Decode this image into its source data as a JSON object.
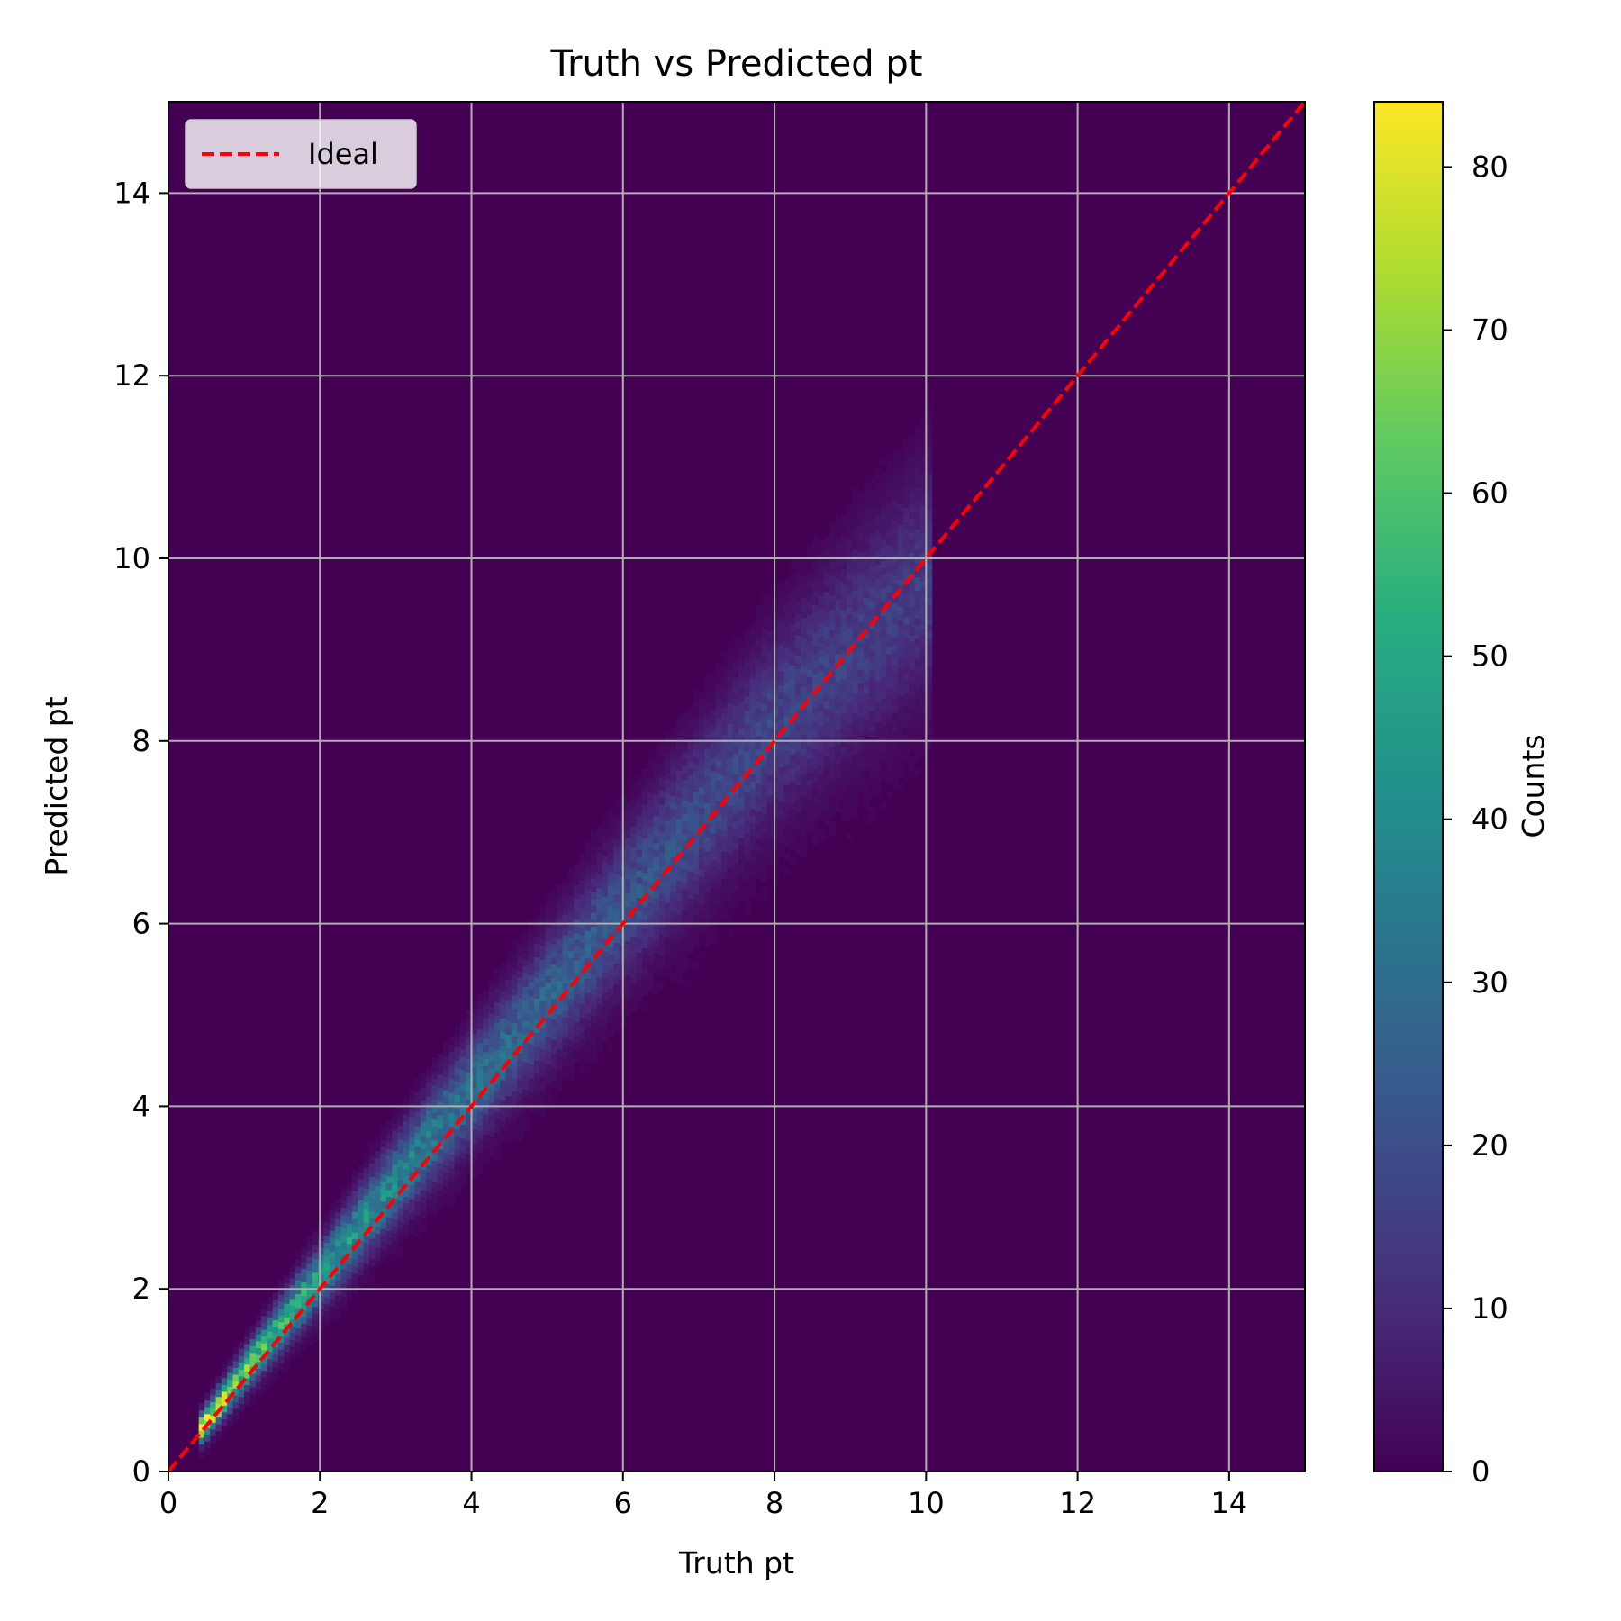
{
  "chart_data": {
    "type": "heatmap",
    "title": "Truth vs Predicted pt",
    "xlabel": "Truth pt",
    "ylabel": "Predicted pt",
    "xlim": [
      0,
      15
    ],
    "ylim": [
      0,
      15
    ],
    "xticks": [
      "0",
      "2",
      "4",
      "6",
      "8",
      "10",
      "12",
      "14"
    ],
    "yticks": [
      "0",
      "2",
      "4",
      "6",
      "8",
      "10",
      "12",
      "14"
    ],
    "grid": true,
    "colormap": "viridis",
    "colorbar": {
      "label": "Counts",
      "range": [
        0,
        84
      ],
      "ticks": [
        "0",
        "10",
        "20",
        "30",
        "40",
        "50",
        "60",
        "70",
        "80"
      ]
    },
    "histogram": {
      "truth_range": [
        0.4,
        10.0
      ],
      "description_ridge": [
        {
          "truth": 0.5,
          "peak_predicted": 0.55,
          "peak_count": 82
        },
        {
          "truth": 1.0,
          "peak_predicted": 1.1,
          "peak_count": 60
        },
        {
          "truth": 2.0,
          "peak_predicted": 2.15,
          "peak_count": 45
        },
        {
          "truth": 3.0,
          "peak_predicted": 3.2,
          "peak_count": 38
        },
        {
          "truth": 4.0,
          "peak_predicted": 4.2,
          "peak_count": 30
        },
        {
          "truth": 6.0,
          "peak_predicted": 6.2,
          "peak_count": 22
        },
        {
          "truth": 8.0,
          "peak_predicted": 8.2,
          "peak_count": 17
        },
        {
          "truth": 10.0,
          "peak_predicted": 9.8,
          "peak_count": 14
        }
      ]
    },
    "series": [
      {
        "name": "Ideal",
        "type": "line",
        "style": "dashed",
        "color": "#ff0000",
        "x": [
          0,
          15
        ],
        "y": [
          0,
          15
        ]
      }
    ],
    "legend": {
      "position": "top-left",
      "entries": [
        "Ideal"
      ]
    }
  }
}
